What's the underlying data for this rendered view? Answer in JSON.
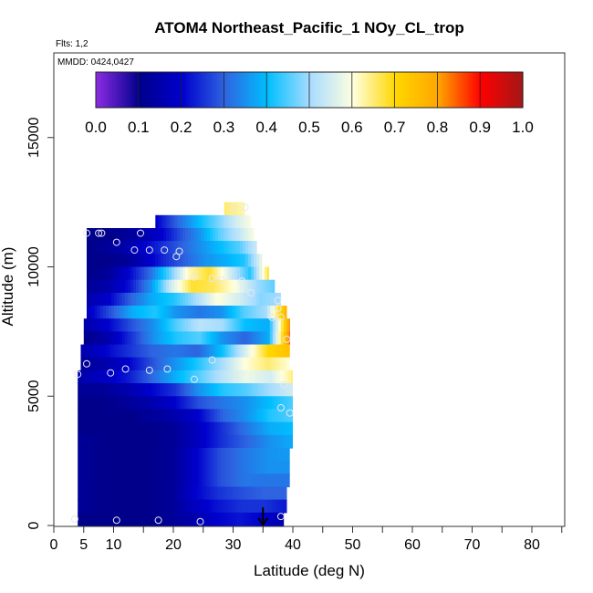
{
  "chart_data": {
    "type": "heatmap",
    "title": "ATOM4 Northeast_Pacific_1 NOy_CL_trop",
    "subtitle_flights": "Flts: 1,2",
    "subtitle_dates": "MMDD: 0424,0427",
    "xlabel": "Latitude (deg N)",
    "ylabel": "Altitude (m)",
    "xlim": [
      0,
      85
    ],
    "ylim": [
      0,
      17000
    ],
    "x_ticks": [
      0,
      5,
      10,
      20,
      30,
      40,
      50,
      60,
      70,
      80
    ],
    "y_ticks": [
      0,
      5000,
      10000,
      15000
    ],
    "colorbar": {
      "range": [
        0.0,
        1.0
      ],
      "tick_labels": [
        "0.0",
        "0.1",
        "0.2",
        "0.3",
        "0.4",
        "0.5",
        "0.6",
        "0.7",
        "0.8",
        "0.9",
        "1.0"
      ],
      "colors": [
        "#8a2be2",
        "#00008b",
        "#0000cd",
        "#2e64e0",
        "#00bfff",
        "#a8dcff",
        "#ffffe0",
        "#ffd700",
        "#ffa500",
        "#ff0000",
        "#a01818"
      ]
    },
    "marker_arrow_latitude": 35,
    "rows": [
      {
        "y0": 12000,
        "y1": 12500,
        "x0": 28.5,
        "x1": 32,
        "vals": [
          0.65,
          0.62
        ]
      },
      {
        "y0": 11500,
        "y1": 12000,
        "x0": 17,
        "x1": 33,
        "vals": [
          0.2,
          0.28,
          0.35,
          0.42,
          0.48,
          0.55,
          0.6
        ]
      },
      {
        "y0": 11000,
        "y1": 11500,
        "x0": 5.5,
        "x1": 33.5,
        "vals": [
          0.1,
          0.1,
          0.12,
          0.15,
          0.2,
          0.28,
          0.35,
          0.45,
          0.52,
          0.6
        ]
      },
      {
        "y0": 10500,
        "y1": 11000,
        "x0": 5.5,
        "x1": 34,
        "vals": [
          0.1,
          0.12,
          0.15,
          0.2,
          0.25,
          0.3,
          0.35,
          0.4,
          0.45,
          0.55
        ]
      },
      {
        "y0": 10000,
        "y1": 10500,
        "x0": 5.5,
        "x1": 35,
        "vals": [
          0.1,
          0.1,
          0.12,
          0.18,
          0.25,
          0.3,
          0.35,
          0.38,
          0.42,
          0.6
        ]
      },
      {
        "y0": 9500,
        "y1": 10000,
        "x0": 5.5,
        "x1": 36,
        "vals": [
          0.1,
          0.12,
          0.2,
          0.3,
          0.45,
          0.62,
          0.68,
          0.55,
          0.42,
          0.7
        ]
      },
      {
        "y0": 9000,
        "y1": 9500,
        "x0": 5.5,
        "x1": 37,
        "vals": [
          0.12,
          0.15,
          0.22,
          0.35,
          0.55,
          0.68,
          0.66,
          0.6,
          0.5,
          0.45
        ]
      },
      {
        "y0": 8500,
        "y1": 9000,
        "x0": 5.5,
        "x1": 38,
        "vals": [
          0.15,
          0.2,
          0.3,
          0.38,
          0.42,
          0.5,
          0.6,
          0.55,
          0.48,
          0.5
        ]
      },
      {
        "y0": 8000,
        "y1": 8500,
        "x0": 5.5,
        "x1": 39,
        "vals": [
          0.18,
          0.28,
          0.38,
          0.42,
          0.35,
          0.32,
          0.35,
          0.45,
          0.5,
          0.8
        ]
      },
      {
        "y0": 7500,
        "y1": 8000,
        "x0": 5,
        "x1": 39.5,
        "vals": [
          0.15,
          0.2,
          0.28,
          0.35,
          0.45,
          0.52,
          0.5,
          0.4,
          0.38,
          0.85
        ]
      },
      {
        "y0": 7000,
        "y1": 7500,
        "x0": 5,
        "x1": 39.5,
        "vals": [
          0.1,
          0.15,
          0.25,
          0.35,
          0.42,
          0.45,
          0.35,
          0.3,
          0.38,
          0.88
        ]
      },
      {
        "y0": 6500,
        "y1": 7000,
        "x0": 4.5,
        "x1": 39.5,
        "vals": [
          0.15,
          0.2,
          0.25,
          0.3,
          0.32,
          0.3,
          0.4,
          0.55,
          0.7,
          0.75
        ]
      },
      {
        "y0": 6000,
        "y1": 6500,
        "x0": 4.5,
        "x1": 39.5,
        "vals": [
          0.12,
          0.15,
          0.2,
          0.28,
          0.35,
          0.42,
          0.5,
          0.6,
          0.65,
          0.6
        ]
      },
      {
        "y0": 5500,
        "y1": 6000,
        "x0": 4,
        "x1": 40,
        "vals": [
          0.15,
          0.18,
          0.22,
          0.3,
          0.38,
          0.45,
          0.52,
          0.58,
          0.55,
          0.65
        ]
      },
      {
        "y0": 5000,
        "y1": 5500,
        "x0": 4,
        "x1": 40,
        "vals": [
          0.12,
          0.12,
          0.15,
          0.2,
          0.25,
          0.35,
          0.42,
          0.45,
          0.5,
          0.55
        ]
      },
      {
        "y0": 4500,
        "y1": 5000,
        "x0": 4,
        "x1": 40,
        "vals": [
          0.1,
          0.1,
          0.12,
          0.15,
          0.2,
          0.28,
          0.32,
          0.35,
          0.4,
          0.45
        ]
      },
      {
        "y0": 4000,
        "y1": 4500,
        "x0": 4,
        "x1": 40,
        "vals": [
          0.1,
          0.1,
          0.1,
          0.12,
          0.15,
          0.2,
          0.3,
          0.35,
          0.42,
          0.45
        ]
      },
      {
        "y0": 3500,
        "y1": 4000,
        "x0": 4,
        "x1": 40,
        "vals": [
          0.1,
          0.1,
          0.1,
          0.1,
          0.12,
          0.18,
          0.25,
          0.32,
          0.38,
          0.4
        ]
      },
      {
        "y0": 3000,
        "y1": 3500,
        "x0": 4,
        "x1": 40,
        "vals": [
          0.12,
          0.1,
          0.1,
          0.1,
          0.12,
          0.18,
          0.25,
          0.3,
          0.35,
          0.38
        ]
      },
      {
        "y0": 2500,
        "y1": 3000,
        "x0": 4,
        "x1": 39.5,
        "vals": [
          0.12,
          0.1,
          0.1,
          0.1,
          0.12,
          0.2,
          0.28,
          0.32,
          0.35,
          0.36
        ]
      },
      {
        "y0": 2000,
        "y1": 2500,
        "x0": 4,
        "x1": 39.5,
        "vals": [
          0.12,
          0.1,
          0.1,
          0.1,
          0.12,
          0.2,
          0.28,
          0.32,
          0.35,
          0.35
        ]
      },
      {
        "y0": 1500,
        "y1": 2000,
        "x0": 4,
        "x1": 39.5,
        "vals": [
          0.12,
          0.1,
          0.1,
          0.1,
          0.12,
          0.2,
          0.28,
          0.32,
          0.32,
          0.32
        ]
      },
      {
        "y0": 1000,
        "y1": 1500,
        "x0": 4,
        "x1": 39,
        "vals": [
          0.12,
          0.1,
          0.1,
          0.1,
          0.12,
          0.2,
          0.25,
          0.28,
          0.3,
          0.3
        ]
      },
      {
        "y0": 500,
        "y1": 1000,
        "x0": 4,
        "x1": 39,
        "vals": [
          0.12,
          0.1,
          0.1,
          0.1,
          0.12,
          0.18,
          0.22,
          0.25,
          0.25,
          0.22
        ]
      },
      {
        "y0": 0,
        "y1": 500,
        "x0": 4,
        "x1": 38.5,
        "vals": [
          0.1,
          0.1,
          0.1,
          0.1,
          0.12,
          0.15,
          0.2,
          0.22,
          0.2,
          0.15
        ]
      }
    ],
    "points": [
      {
        "lat": 30,
        "alt": 12300
      },
      {
        "lat": 32,
        "alt": 12300
      },
      {
        "lat": 5.5,
        "alt": 11300
      },
      {
        "lat": 7.5,
        "alt": 11300
      },
      {
        "lat": 8,
        "alt": 11300
      },
      {
        "lat": 14.5,
        "alt": 11300
      },
      {
        "lat": 10.5,
        "alt": 10950
      },
      {
        "lat": 13.5,
        "alt": 10650
      },
      {
        "lat": 16,
        "alt": 10650
      },
      {
        "lat": 18.5,
        "alt": 10650
      },
      {
        "lat": 21,
        "alt": 10600
      },
      {
        "lat": 20.5,
        "alt": 10400
      },
      {
        "lat": 23.5,
        "alt": 9600
      },
      {
        "lat": 26.5,
        "alt": 9550
      },
      {
        "lat": 28,
        "alt": 9500
      },
      {
        "lat": 31.5,
        "alt": 9450
      },
      {
        "lat": 33,
        "alt": 9000
      },
      {
        "lat": 37.5,
        "alt": 8700
      },
      {
        "lat": 36.5,
        "alt": 8050
      },
      {
        "lat": 38,
        "alt": 8050
      },
      {
        "lat": 37.5,
        "alt": 8400
      },
      {
        "lat": 39,
        "alt": 7200
      },
      {
        "lat": 5.5,
        "alt": 6250
      },
      {
        "lat": 26.5,
        "alt": 6400
      },
      {
        "lat": 4,
        "alt": 5850
      },
      {
        "lat": 9.5,
        "alt": 5900
      },
      {
        "lat": 12,
        "alt": 6050
      },
      {
        "lat": 16,
        "alt": 6000
      },
      {
        "lat": 19,
        "alt": 6050
      },
      {
        "lat": 23.5,
        "alt": 5650
      },
      {
        "lat": 38.5,
        "alt": 5450
      },
      {
        "lat": 38,
        "alt": 4550
      },
      {
        "lat": 39.5,
        "alt": 4350
      },
      {
        "lat": 3.5,
        "alt": 250
      },
      {
        "lat": 10.5,
        "alt": 200
      },
      {
        "lat": 17.5,
        "alt": 200
      },
      {
        "lat": 24.5,
        "alt": 150
      },
      {
        "lat": 38,
        "alt": 350
      }
    ]
  }
}
